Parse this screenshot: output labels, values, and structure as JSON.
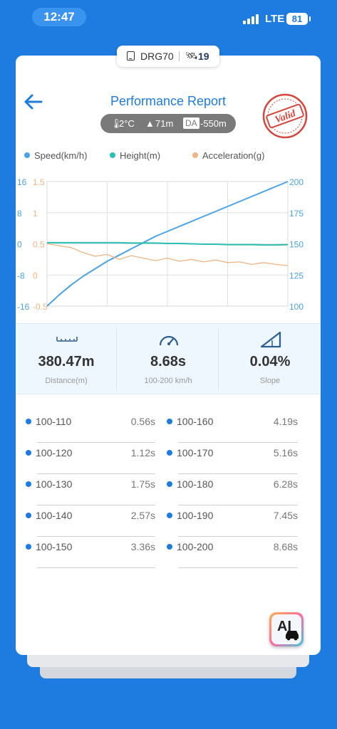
{
  "status_bar": {
    "time": "12:47",
    "network": "LTE",
    "battery": "81"
  },
  "device": {
    "name": "DRG70",
    "satellites": "19"
  },
  "header": {
    "title": "Performance Report",
    "stamp": "Valid"
  },
  "conditions": {
    "temperature": "2°C",
    "altitude": "71m",
    "da_label": "DA",
    "density_altitude": "-550m"
  },
  "legend": [
    {
      "label": "Speed(km/h)",
      "color": "#4aa3e6"
    },
    {
      "label": "Height(m)",
      "color": "#2bbfb3"
    },
    {
      "label": "Acceleration(g)",
      "color": "#f0b483"
    }
  ],
  "chart_data": {
    "type": "line",
    "x": [
      0,
      1,
      2,
      3,
      4,
      5,
      6,
      7,
      8,
      9,
      10,
      11,
      12,
      13,
      14,
      15,
      16,
      17,
      18,
      19,
      20
    ],
    "axes": {
      "height_ticks": [
        "16",
        "8",
        "0",
        "-8",
        "-16"
      ],
      "accel_ticks": [
        "1.5",
        "1",
        "0.5",
        "0",
        "-0.5"
      ],
      "speed_ticks": [
        "200",
        "175",
        "150",
        "125",
        "100"
      ],
      "height_range": [
        -16,
        16
      ],
      "accel_range": [
        -0.5,
        1.5
      ],
      "speed_range": [
        100,
        200
      ],
      "grid": true
    },
    "series": [
      {
        "name": "Speed(km/h)",
        "color": "#4aa3e6",
        "values": [
          100,
          109,
          117,
          124,
          130,
          136,
          141,
          146,
          151,
          156,
          160,
          164,
          168,
          172,
          176,
          180,
          184,
          188,
          192,
          196,
          200
        ]
      },
      {
        "name": "Height(m)",
        "color": "#2bbfb3",
        "values": [
          0.3,
          0.3,
          0.3,
          0.3,
          0.3,
          0.3,
          0.3,
          0.2,
          0.2,
          0.2,
          0.1,
          0.1,
          0.0,
          -0.1,
          -0.1,
          -0.2,
          -0.2,
          -0.2,
          -0.3,
          -0.3,
          -0.2
        ]
      },
      {
        "name": "Acceleration(g)",
        "color": "#f0b483",
        "values": [
          0.5,
          0.47,
          0.44,
          0.36,
          0.3,
          0.33,
          0.25,
          0.31,
          0.27,
          0.23,
          0.27,
          0.22,
          0.25,
          0.21,
          0.24,
          0.2,
          0.21,
          0.17,
          0.2,
          0.17,
          0.15
        ]
      }
    ]
  },
  "stats": [
    {
      "value": "380.47m",
      "label": "Distance(m)",
      "icon": "ruler-icon"
    },
    {
      "value": "8.68s",
      "label": "100-200 km/h",
      "icon": "speedometer-icon"
    },
    {
      "value": "0.04%",
      "label": "Slope",
      "icon": "slope-icon"
    }
  ],
  "splits": [
    {
      "range": "100-110",
      "time": "0.56s"
    },
    {
      "range": "100-160",
      "time": "4.19s"
    },
    {
      "range": "100-120",
      "time": "1.12s"
    },
    {
      "range": "100-170",
      "time": "5.16s"
    },
    {
      "range": "100-130",
      "time": "1.75s"
    },
    {
      "range": "100-180",
      "time": "6.28s"
    },
    {
      "range": "100-140",
      "time": "2.57s"
    },
    {
      "range": "100-190",
      "time": "7.45s"
    },
    {
      "range": "100-150",
      "time": "3.36s"
    },
    {
      "range": "100-200",
      "time": "8.68s"
    }
  ],
  "ai_button": {
    "label": "AI"
  }
}
